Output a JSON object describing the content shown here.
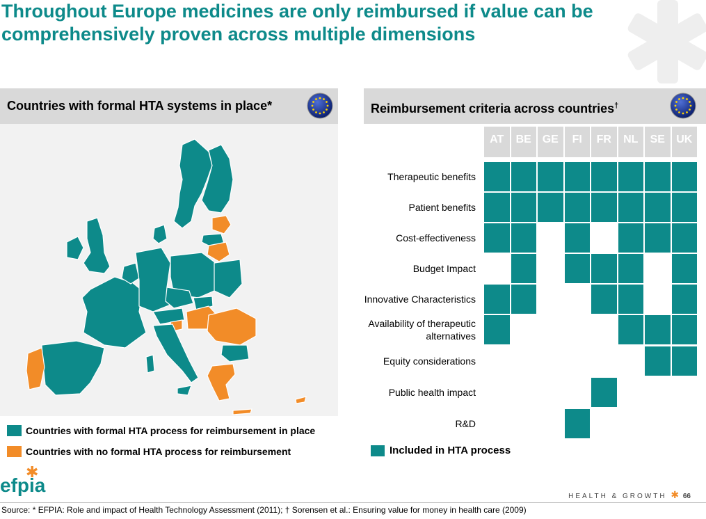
{
  "title": "Throughout Europe medicines are only reimbursed if value can be comprehensively proven across multiple dimensions",
  "left_panel": {
    "header": "Countries with formal HTA systems in place*",
    "legend": [
      {
        "label": "Countries with formal HTA process for reimbursement in place",
        "color": "#0d8a8a"
      },
      {
        "label": "Countries with no formal HTA process for reimbursement",
        "color": "#f28c28"
      }
    ]
  },
  "right_panel": {
    "header": "Reimbursement criteria across countries",
    "header_mark": "†",
    "columns": [
      "AT",
      "BE",
      "GE",
      "FI",
      "FR",
      "NL",
      "SE",
      "UK"
    ],
    "rows": [
      {
        "label": "Therapeutic benefits",
        "included": [
          1,
          1,
          1,
          1,
          1,
          1,
          1,
          1
        ]
      },
      {
        "label": "Patient benefits",
        "included": [
          1,
          1,
          1,
          1,
          1,
          1,
          1,
          1
        ]
      },
      {
        "label": "Cost-effectiveness",
        "included": [
          1,
          1,
          0,
          1,
          0,
          1,
          1,
          1
        ]
      },
      {
        "label": "Budget Impact",
        "included": [
          0,
          1,
          0,
          1,
          1,
          1,
          0,
          1
        ]
      },
      {
        "label": "Innovative Characteristics",
        "included": [
          1,
          1,
          0,
          0,
          1,
          1,
          0,
          1
        ]
      },
      {
        "label": "Availability of therapeutic alternatives",
        "included": [
          1,
          0,
          0,
          0,
          0,
          1,
          1,
          1
        ]
      },
      {
        "label": "Equity considerations",
        "included": [
          0,
          0,
          0,
          0,
          0,
          0,
          1,
          1
        ]
      },
      {
        "label": "Public health impact",
        "included": [
          0,
          0,
          0,
          0,
          1,
          0,
          0,
          0
        ]
      },
      {
        "label": "R&D",
        "included": [
          0,
          0,
          0,
          1,
          0,
          0,
          0,
          0
        ]
      }
    ],
    "legend": {
      "label": "Included in HTA process",
      "color": "#0d8a8a"
    }
  },
  "logo": "efpia",
  "footer": {
    "tagline": "HEALTH & GROWTH",
    "page_number": "66"
  },
  "source": "Source: * EFPIA:  Role and impact of Health Technology Assessment (2011); † Sorensen et al.: Ensuring value for money in health care (2009)"
}
